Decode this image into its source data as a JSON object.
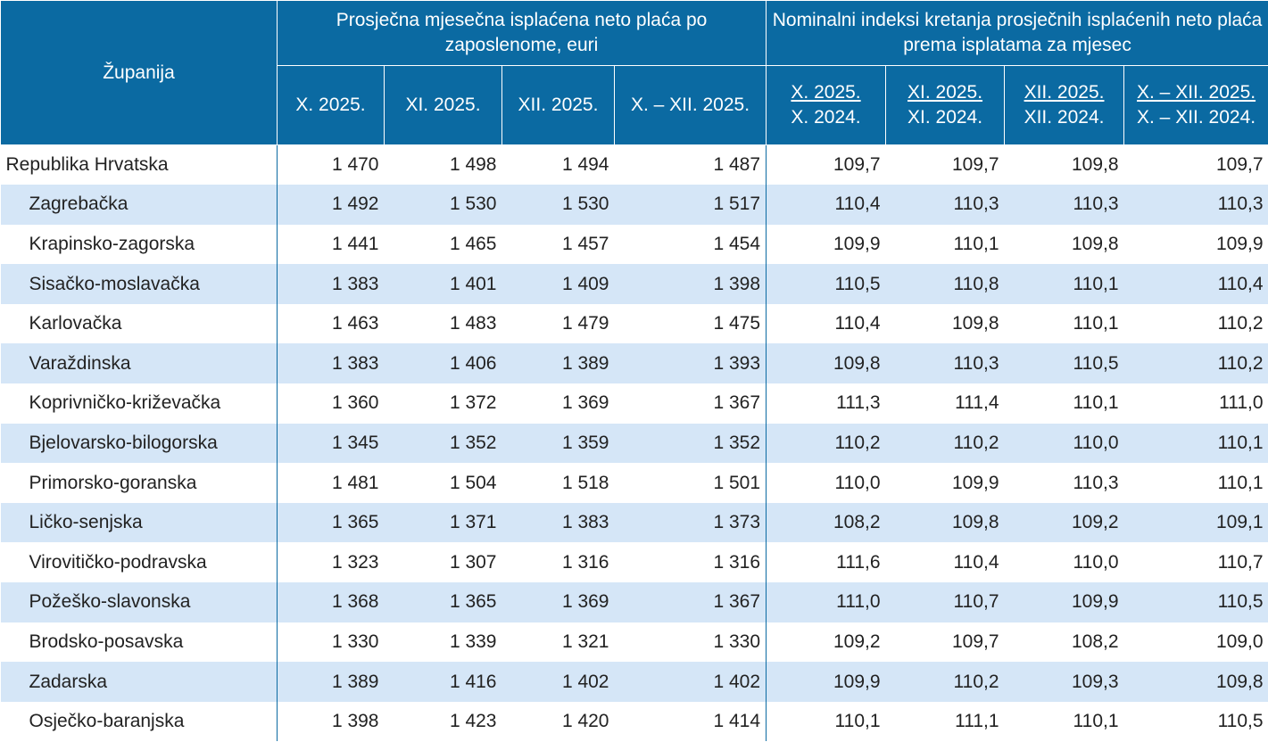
{
  "header": {
    "county": "Županija",
    "group1": "Prosječna mjesečna isplaćena neto plaća po zaposlenome, euri",
    "group2": "Nominalni indeksi kretanja prosječnih isplaćenih neto plaća prema isplatama za mjesec",
    "cols1": [
      "X. 2025.",
      "XI. 2025.",
      "XII. 2025.",
      "X. – XII. 2025."
    ],
    "cols2": [
      {
        "top": "X. 2025.",
        "bottom": "X. 2024."
      },
      {
        "top": "XI. 2025.",
        "bottom": "XI. 2024."
      },
      {
        "top": "XII. 2025.",
        "bottom": "XII. 2024."
      },
      {
        "top": "X. – XII. 2025.",
        "bottom": "X. – XII. 2024."
      }
    ]
  },
  "table": {
    "rows": [
      {
        "name": "Republika Hrvatska",
        "values": [
          "1 470",
          "1 498",
          "1 494",
          "1 487",
          "109,7",
          "109,7",
          "109,8",
          "109,7"
        ]
      },
      {
        "name": "Zagrebačka",
        "values": [
          "1 492",
          "1 530",
          "1 530",
          "1 517",
          "110,4",
          "110,3",
          "110,3",
          "110,3"
        ]
      },
      {
        "name": "Krapinsko-zagorska",
        "values": [
          "1 441",
          "1 465",
          "1 457",
          "1 454",
          "109,9",
          "110,1",
          "109,8",
          "109,9"
        ]
      },
      {
        "name": "Sisačko-moslavačka",
        "values": [
          "1 383",
          "1 401",
          "1 409",
          "1 398",
          "110,5",
          "110,8",
          "110,1",
          "110,4"
        ]
      },
      {
        "name": "Karlovačka",
        "values": [
          "1 463",
          "1 483",
          "1 479",
          "1 475",
          "110,4",
          "109,8",
          "110,1",
          "110,2"
        ]
      },
      {
        "name": "Varaždinska",
        "values": [
          "1 383",
          "1 406",
          "1 389",
          "1 393",
          "109,8",
          "110,3",
          "110,5",
          "110,2"
        ]
      },
      {
        "name": "Koprivničko-križevačka",
        "values": [
          "1 360",
          "1 372",
          "1 369",
          "1 367",
          "111,3",
          "111,4",
          "110,1",
          "111,0"
        ]
      },
      {
        "name": "Bjelovarsko-bilogorska",
        "values": [
          "1 345",
          "1 352",
          "1 359",
          "1 352",
          "110,2",
          "110,2",
          "110,0",
          "110,1"
        ]
      },
      {
        "name": "Primorsko-goranska",
        "values": [
          "1 481",
          "1 504",
          "1 518",
          "1 501",
          "110,0",
          "109,9",
          "110,3",
          "110,1"
        ]
      },
      {
        "name": "Ličko-senjska",
        "values": [
          "1 365",
          "1 371",
          "1 383",
          "1 373",
          "108,2",
          "109,8",
          "109,2",
          "109,1"
        ]
      },
      {
        "name": "Virovitičko-podravska",
        "values": [
          "1 323",
          "1 307",
          "1 316",
          "1 316",
          "111,6",
          "110,4",
          "110,0",
          "110,7"
        ]
      },
      {
        "name": "Požeško-slavonska",
        "values": [
          "1 368",
          "1 365",
          "1 369",
          "1 367",
          "111,0",
          "110,7",
          "109,9",
          "110,5"
        ]
      },
      {
        "name": "Brodsko-posavska",
        "values": [
          "1 330",
          "1 339",
          "1 321",
          "1 330",
          "109,2",
          "109,7",
          "108,2",
          "109,0"
        ]
      },
      {
        "name": "Zadarska",
        "values": [
          "1 389",
          "1 416",
          "1 402",
          "1 402",
          "109,9",
          "110,2",
          "109,3",
          "109,8"
        ]
      },
      {
        "name": "Osječko-baranjska",
        "values": [
          "1 398",
          "1 423",
          "1 420",
          "1 414",
          "110,1",
          "111,1",
          "110,1",
          "110,5"
        ]
      }
    ]
  }
}
